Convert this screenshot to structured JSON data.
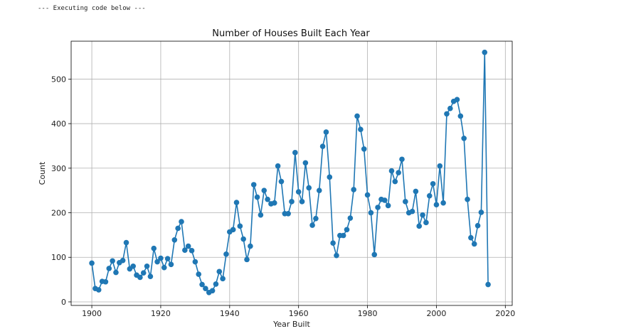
{
  "console": {
    "header": "--- Executing code below ---"
  },
  "chart_data": {
    "type": "line",
    "title": "Number of Houses Built Each Year",
    "xlabel": "Year Built",
    "ylabel": "Count",
    "xlim": [
      1894,
      2022
    ],
    "ylim": [
      -8,
      585
    ],
    "xticks": [
      1900,
      1920,
      1940,
      1960,
      1980,
      2000,
      2020
    ],
    "yticks": [
      0,
      100,
      200,
      300,
      400,
      500
    ],
    "grid": true,
    "color": "#1f77b4",
    "marker": "circle",
    "series": [
      {
        "x": [
          1900,
          1901,
          1902,
          1903,
          1904,
          1905,
          1906,
          1907,
          1908,
          1909,
          1910,
          1911,
          1912,
          1913,
          1914,
          1915,
          1916,
          1917,
          1918,
          1919,
          1920,
          1921,
          1922,
          1923,
          1924,
          1925,
          1926,
          1927,
          1928,
          1929,
          1930,
          1931,
          1932,
          1933,
          1934,
          1935,
          1936,
          1937,
          1938,
          1939,
          1940,
          1941,
          1942,
          1943,
          1944,
          1945,
          1946,
          1947,
          1948,
          1949,
          1950,
          1951,
          1952,
          1953,
          1954,
          1955,
          1956,
          1957,
          1958,
          1959,
          1960,
          1961,
          1962,
          1963,
          1964,
          1965,
          1966,
          1967,
          1968,
          1969,
          1970,
          1971,
          1972,
          1973,
          1974,
          1975,
          1976,
          1977,
          1978,
          1979,
          1980,
          1981,
          1982,
          1983,
          1984,
          1985,
          1986,
          1987,
          1988,
          1989,
          1990,
          1991,
          1992,
          1993,
          1994,
          1995,
          1996,
          1997,
          1998,
          1999,
          2000,
          2001,
          2002,
          2003,
          2004,
          2005,
          2006,
          2007,
          2008,
          2009,
          2010,
          2011,
          2012,
          2013,
          2014,
          2015
        ],
        "y": [
          87,
          30,
          27,
          46,
          45,
          75,
          92,
          66,
          88,
          93,
          133,
          74,
          80,
          60,
          55,
          65,
          80,
          57,
          120,
          90,
          98,
          77,
          97,
          84,
          139,
          165,
          180,
          116,
          125,
          115,
          90,
          62,
          39,
          30,
          21,
          25,
          40,
          68,
          52,
          107,
          157,
          162,
          223,
          170,
          141,
          95,
          125,
          263,
          235,
          195,
          250,
          230,
          220,
          222,
          305,
          270,
          198,
          198,
          225,
          335,
          247,
          225,
          312,
          256,
          172,
          187,
          250,
          349,
          381,
          280,
          132,
          104,
          149,
          149,
          162,
          188,
          252,
          417,
          387,
          343,
          240,
          200,
          106,
          212,
          230,
          228,
          216,
          294,
          270,
          290,
          320,
          225,
          200,
          203,
          248,
          170,
          195,
          178,
          238,
          265,
          218,
          305,
          222,
          422,
          434,
          450,
          454,
          417,
          367,
          230,
          144,
          130,
          171,
          201,
          560,
          39
        ]
      }
    ]
  }
}
